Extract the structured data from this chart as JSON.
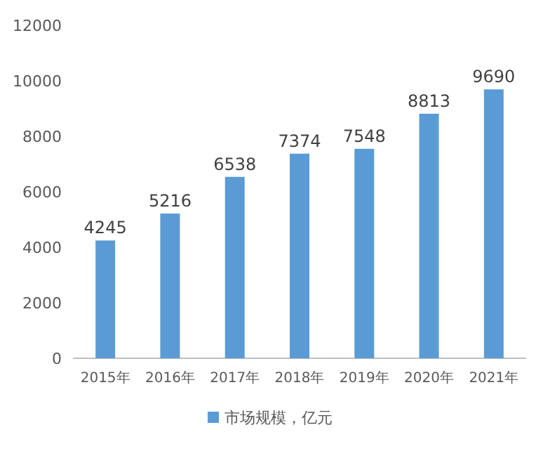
{
  "chart_data": {
    "type": "bar",
    "categories": [
      "2015年",
      "2016年",
      "2017年",
      "2018年",
      "2019年",
      "2020年",
      "2021年"
    ],
    "series": [
      {
        "name": "市场规模，亿元",
        "color": "#5b9bd5",
        "values": [
          4245,
          5216,
          6538,
          7374,
          7548,
          8813,
          9690
        ]
      }
    ],
    "ylim": [
      0,
      12000
    ],
    "yticks": [
      0,
      2000,
      4000,
      6000,
      8000,
      10000,
      12000
    ],
    "data_labels": true,
    "legend": "bottom"
  }
}
